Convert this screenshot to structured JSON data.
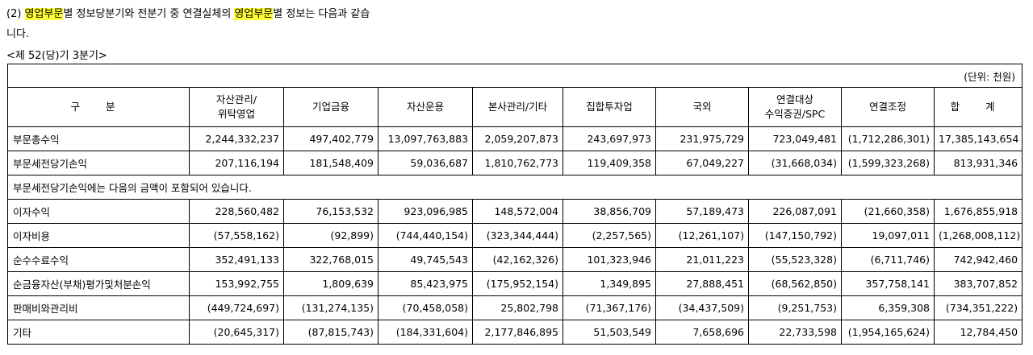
{
  "intro": {
    "prefix": "(2) ",
    "hl1": "영업부문",
    "mid1": "별 정보당분기와 전분기 중 연결실체의 ",
    "hl2": "영업부문",
    "mid2": "별 정보는 다음과 같습",
    "line2": "니다.",
    "period": "<제 52(당)기 3분기>"
  },
  "table": {
    "unit": "(단위: 천원)",
    "headers": [
      [
        "구 분"
      ],
      [
        "자산관리/",
        "위탁영업"
      ],
      [
        "기업금융"
      ],
      [
        "자산운용"
      ],
      [
        "본사관리/기타"
      ],
      [
        "집합투자업"
      ],
      [
        "국외"
      ],
      [
        "연결대상",
        "수익증권/SPC"
      ],
      [
        "연결조정"
      ],
      [
        "합 계"
      ]
    ],
    "note": "부문세전당기손익에는 다음의 금액이 포함되어 있습니다.",
    "rows_top": [
      {
        "label": "부문총수익",
        "values": [
          "2,244,332,237",
          "497,402,779",
          "13,097,763,883",
          "2,059,207,873",
          "243,697,973",
          "231,975,729",
          "723,049,481",
          "(1,712,286,301)",
          "17,385,143,654"
        ]
      },
      {
        "label": "부문세전당기손익",
        "values": [
          "207,116,194",
          "181,548,409",
          "59,036,687",
          "1,810,762,773",
          "119,409,358",
          "67,049,227",
          "(31,668,034)",
          "(1,599,323,268)",
          "813,931,346"
        ]
      }
    ],
    "rows_bottom": [
      {
        "label": "이자수익",
        "values": [
          "228,560,482",
          "76,153,532",
          "923,096,985",
          "148,572,004",
          "38,856,709",
          "57,189,473",
          "226,087,091",
          "(21,660,358)",
          "1,676,855,918"
        ]
      },
      {
        "label": "이자비용",
        "values": [
          "(57,558,162)",
          "(92,899)",
          "(744,440,154)",
          "(323,344,444)",
          "(2,257,565)",
          "(12,261,107)",
          "(147,150,792)",
          "19,097,011",
          "(1,268,008,112)"
        ]
      },
      {
        "label": "순수수료수익",
        "values": [
          "352,491,133",
          "322,768,015",
          "49,745,543",
          "(42,162,326)",
          "101,323,946",
          "21,011,223",
          "(55,523,328)",
          "(6,711,746)",
          "742,942,460"
        ]
      },
      {
        "label": "순금융자산(부채)평가및처분손익",
        "values": [
          "153,992,755",
          "1,809,639",
          "85,423,975",
          "(175,952,154)",
          "1,349,895",
          "27,888,451",
          "(68,562,850)",
          "357,758,141",
          "383,707,852"
        ]
      },
      {
        "label": "판매비와관리비",
        "values": [
          "(449,724,697)",
          "(131,274,135)",
          "(70,458,058)",
          "25,802,798",
          "(71,367,176)",
          "(34,437,509)",
          "(9,251,753)",
          "6,359,308",
          "(734,351,222)"
        ]
      },
      {
        "label": "기타",
        "values": [
          "(20,645,317)",
          "(87,815,743)",
          "(184,331,604)",
          "2,177,846,895",
          "51,503,549",
          "7,658,696",
          "22,733,598",
          "(1,954,165,624)",
          "12,784,450"
        ]
      }
    ]
  }
}
